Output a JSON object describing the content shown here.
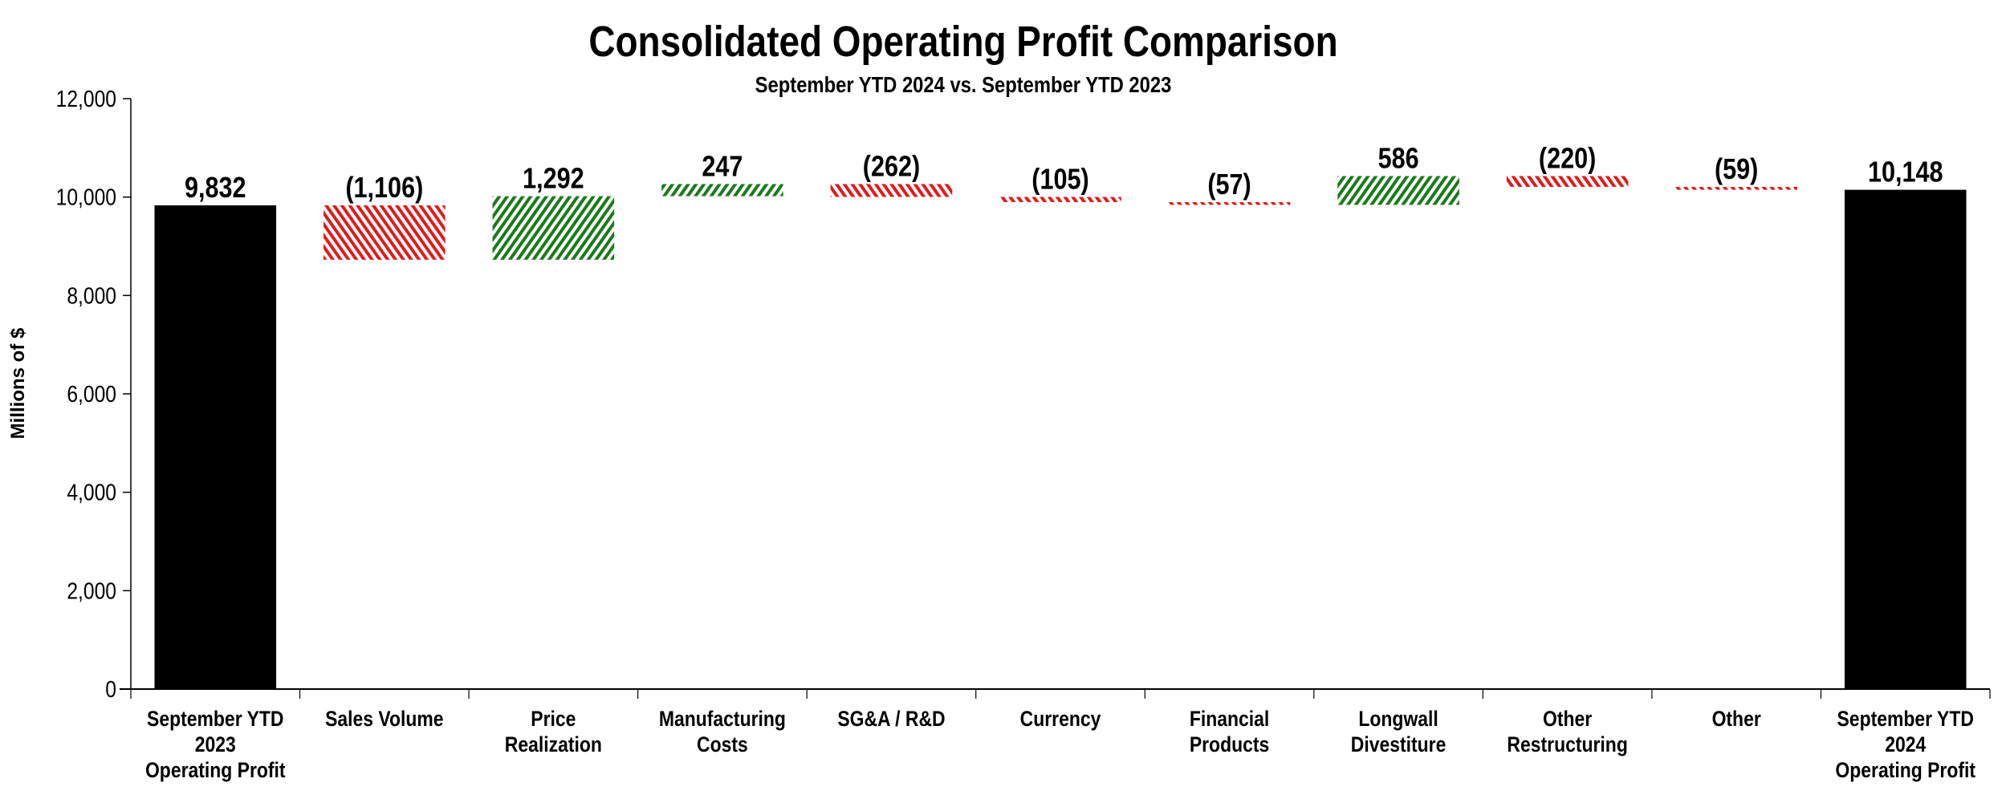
{
  "chart_data": {
    "type": "waterfall",
    "title": "Consolidated Operating Profit Comparison",
    "subtitle": "September YTD 2024 vs. September YTD 2023",
    "ylabel": "Millions of $",
    "xlabel": "",
    "ylim": [
      0,
      12000
    ],
    "yticks": [
      0,
      2000,
      4000,
      6000,
      8000,
      10000,
      12000
    ],
    "ytick_labels": [
      "0",
      "2,000",
      "4,000",
      "6,000",
      "8,000",
      "10,000",
      "12,000"
    ],
    "grid": false,
    "legend": "none",
    "colors": {
      "total": "#000000",
      "increase": "#1a7a1a",
      "decrease": "#e01b1b"
    },
    "categories": [
      [
        "September YTD",
        "2023",
        "Operating Profit"
      ],
      [
        "Sales Volume"
      ],
      [
        "Price",
        "Realization"
      ],
      [
        "Manufacturing",
        "Costs"
      ],
      [
        "SG&A / R&D"
      ],
      [
        "Currency"
      ],
      [
        "Financial",
        "Products"
      ],
      [
        "Longwall",
        "Divestiture"
      ],
      [
        "Other",
        "Restructuring"
      ],
      [
        "Other"
      ],
      [
        "September YTD",
        "2024",
        "Operating Profit"
      ]
    ],
    "kinds": [
      "total",
      "delta",
      "delta",
      "delta",
      "delta",
      "delta",
      "delta",
      "delta",
      "delta",
      "delta",
      "total"
    ],
    "values": [
      9832,
      -1106,
      1292,
      247,
      -262,
      -105,
      -57,
      586,
      -220,
      -59,
      10148
    ],
    "data_labels": [
      "9,832",
      "(1,106)",
      "1,292",
      "247",
      "(262)",
      "(105)",
      "(57)",
      "586",
      "(220)",
      "(59)",
      "10,148"
    ]
  }
}
